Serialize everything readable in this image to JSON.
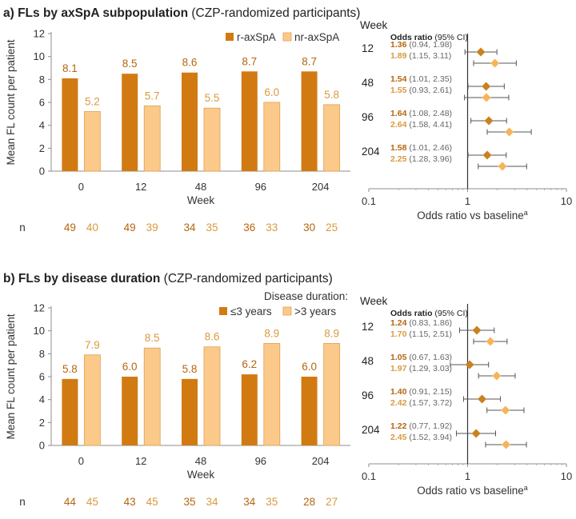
{
  "colors": {
    "dark": "#D27A12",
    "light": "#FBC98A",
    "light_edge": "#E0A050",
    "dark_text": "#B5650F",
    "light_text": "#D99A3E",
    "diamond_dark": "#C9821F",
    "diamond_light": "#F6B45A",
    "axis": "#8C8C8C",
    "whisker": "#555555"
  },
  "chart_data": [
    {
      "id": "a",
      "type": "bar",
      "title_bold": "a) FLs by axSpA subpopulation",
      "title_rest": " (CZP-randomized participants)",
      "categories": [
        "0",
        "12",
        "48",
        "96",
        "204"
      ],
      "xlabel": "Week",
      "ylabel": "Mean FL count per patient",
      "ylim": [
        0,
        12
      ],
      "yticks": [
        "0",
        "2",
        "4",
        "6",
        "8",
        "10",
        "12"
      ],
      "legend_title": "",
      "series": [
        {
          "name": "r-axSpA",
          "values": [
            8.1,
            8.5,
            8.6,
            8.7,
            8.7
          ],
          "labels": [
            "8.1",
            "8.5",
            "8.6",
            "8.7",
            "8.7"
          ],
          "n": [
            "49",
            "49",
            "34",
            "36",
            "30"
          ]
        },
        {
          "name": "nr-axSpA",
          "values": [
            5.2,
            5.7,
            5.5,
            6.0,
            5.8
          ],
          "labels": [
            "5.2",
            "5.7",
            "5.5",
            "6.0",
            "5.8"
          ],
          "n": [
            "40",
            "39",
            "35",
            "33",
            "25"
          ]
        }
      ],
      "n_label": "n"
    },
    {
      "id": "b",
      "type": "bar",
      "title_bold": "b) FLs by disease duration",
      "title_rest": " (CZP-randomized participants)",
      "categories": [
        "0",
        "12",
        "48",
        "96",
        "204"
      ],
      "xlabel": "Week",
      "ylabel": "Mean FL count per patient",
      "ylim": [
        0,
        12
      ],
      "yticks": [
        "0",
        "2",
        "4",
        "6",
        "8",
        "10",
        "12"
      ],
      "legend_title": "Disease duration:",
      "series": [
        {
          "name": "≤3 years",
          "values": [
            5.8,
            6.0,
            5.8,
            6.2,
            6.0
          ],
          "labels": [
            "5.8",
            "6.0",
            "5.8",
            "6.2",
            "6.0"
          ],
          "n": [
            "44",
            "43",
            "35",
            "34",
            "28"
          ]
        },
        {
          "name": ">3 years",
          "values": [
            7.9,
            8.5,
            8.6,
            8.9,
            8.9
          ],
          "labels": [
            "7.9",
            "8.5",
            "8.6",
            "8.9",
            "8.9"
          ],
          "n": [
            "45",
            "45",
            "34",
            "35",
            "27"
          ]
        }
      ],
      "n_label": "n"
    },
    {
      "id": "fa",
      "type": "scatter",
      "scale": "log",
      "week_header": "Week",
      "or_header_bold": "Odds ratio",
      "or_header_rest": " (95% CI)",
      "xlabel": "Odds ratio vs baseline",
      "xlabel_sup": "a",
      "xlim": [
        0.1,
        10
      ],
      "xticks": [
        {
          "v": 0.1,
          "t": "0.1"
        },
        {
          "v": 1,
          "t": "1"
        },
        {
          "v": 10,
          "t": "10"
        }
      ],
      "reference": 1,
      "rows": [
        {
          "week": "12",
          "items": [
            {
              "est": 1.36,
              "lo": 0.94,
              "hi": 1.98,
              "est_t": "1.36",
              "ci_t": " (0.94, 1.98)"
            },
            {
              "est": 1.89,
              "lo": 1.15,
              "hi": 3.11,
              "est_t": "1.89",
              "ci_t": " (1.15, 3.11)"
            }
          ]
        },
        {
          "week": "48",
          "items": [
            {
              "est": 1.54,
              "lo": 1.01,
              "hi": 2.35,
              "est_t": "1.54",
              "ci_t": " (1.01, 2.35)"
            },
            {
              "est": 1.55,
              "lo": 0.93,
              "hi": 2.61,
              "est_t": "1.55",
              "ci_t": " (0.93, 2.61)"
            }
          ]
        },
        {
          "week": "96",
          "items": [
            {
              "est": 1.64,
              "lo": 1.08,
              "hi": 2.48,
              "est_t": "1.64",
              "ci_t": " (1.08, 2.48)"
            },
            {
              "est": 2.64,
              "lo": 1.58,
              "hi": 4.41,
              "est_t": "2.64",
              "ci_t": " (1.58, 4.41)"
            }
          ]
        },
        {
          "week": "204",
          "items": [
            {
              "est": 1.58,
              "lo": 1.01,
              "hi": 2.46,
              "est_t": "1.58",
              "ci_t": " (1.01, 2.46)"
            },
            {
              "est": 2.25,
              "lo": 1.28,
              "hi": 3.96,
              "est_t": "2.25",
              "ci_t": " (1.28, 3.96)"
            }
          ]
        }
      ]
    },
    {
      "id": "fb",
      "type": "scatter",
      "scale": "log",
      "week_header": "Week",
      "or_header_bold": "Odds ratio",
      "or_header_rest": " (95% CI)",
      "xlabel": "Odds ratio vs baseline",
      "xlabel_sup": "a",
      "xlim": [
        0.1,
        10
      ],
      "xticks": [
        {
          "v": 0.1,
          "t": "0.1"
        },
        {
          "v": 1,
          "t": "1"
        },
        {
          "v": 10,
          "t": "10"
        }
      ],
      "reference": 1,
      "rows": [
        {
          "week": "12",
          "items": [
            {
              "est": 1.24,
              "lo": 0.83,
              "hi": 1.86,
              "est_t": "1.24",
              "ci_t": " (0.83, 1.86)"
            },
            {
              "est": 1.7,
              "lo": 1.15,
              "hi": 2.51,
              "est_t": "1.70",
              "ci_t": " (1.15, 2.51)"
            }
          ]
        },
        {
          "week": "48",
          "items": [
            {
              "est": 1.05,
              "lo": 0.67,
              "hi": 1.63,
              "est_t": "1.05",
              "ci_t": " (0.67, 1.63)"
            },
            {
              "est": 1.97,
              "lo": 1.29,
              "hi": 3.03,
              "est_t": "1.97",
              "ci_t": " (1.29, 3.03)"
            }
          ]
        },
        {
          "week": "96",
          "items": [
            {
              "est": 1.4,
              "lo": 0.91,
              "hi": 2.15,
              "est_t": "1.40",
              "ci_t": " (0.91, 2.15)"
            },
            {
              "est": 2.42,
              "lo": 1.57,
              "hi": 3.72,
              "est_t": "2.42",
              "ci_t": " (1.57, 3.72)"
            }
          ]
        },
        {
          "week": "204",
          "items": [
            {
              "est": 1.22,
              "lo": 0.77,
              "hi": 1.92,
              "est_t": "1.22",
              "ci_t": " (0.77, 1.92)"
            },
            {
              "est": 2.45,
              "lo": 1.52,
              "hi": 3.94,
              "est_t": "2.45",
              "ci_t": " (1.52, 3.94)"
            }
          ]
        }
      ]
    }
  ]
}
